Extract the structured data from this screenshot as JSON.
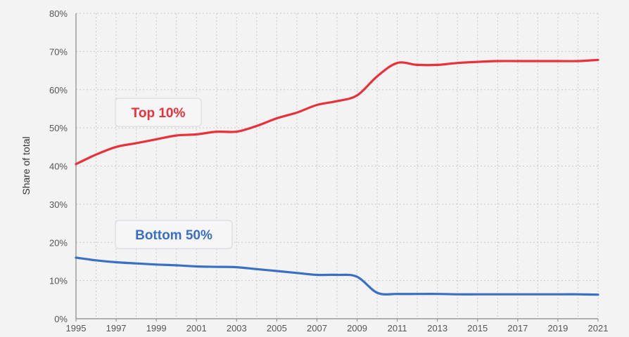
{
  "chart_data": {
    "type": "line",
    "title": "",
    "xlabel": "",
    "ylabel": "Share of total",
    "xlim": [
      1995,
      2021
    ],
    "ylim": [
      0,
      80
    ],
    "grid": true,
    "x_ticks": [
      "1995",
      "1997",
      "1999",
      "2001",
      "2003",
      "2005",
      "2007",
      "2009",
      "2011",
      "2013",
      "2015",
      "2017",
      "2019",
      "2021"
    ],
    "y_ticks": [
      "0%",
      "10%",
      "20%",
      "30%",
      "40%",
      "50%",
      "60%",
      "70%",
      "80%"
    ],
    "series": [
      {
        "name": "Top 10%",
        "color": "#e8313a",
        "x": [
          1995,
          1996,
          1997,
          1998,
          1999,
          2000,
          2001,
          2002,
          2003,
          2004,
          2005,
          2006,
          2007,
          2008,
          2009,
          2010,
          2011,
          2012,
          2013,
          2014,
          2015,
          2016,
          2017,
          2018,
          2019,
          2020,
          2021
        ],
        "y": [
          40.5,
          43,
          45,
          46,
          47,
          48,
          48.3,
          49,
          49,
          50.5,
          52.5,
          54,
          56,
          57,
          58.5,
          63.5,
          67,
          66.5,
          66.5,
          67,
          67.3,
          67.5,
          67.5,
          67.5,
          67.5,
          67.5,
          67.8
        ]
      },
      {
        "name": "Bottom 50%",
        "color": "#3a6fc4",
        "x": [
          1995,
          1996,
          1997,
          1998,
          1999,
          2000,
          2001,
          2002,
          2003,
          2004,
          2005,
          2006,
          2007,
          2008,
          2009,
          2010,
          2011,
          2012,
          2013,
          2014,
          2015,
          2016,
          2017,
          2018,
          2019,
          2020,
          2021
        ],
        "y": [
          16,
          15.3,
          14.8,
          14.5,
          14.2,
          14,
          13.7,
          13.6,
          13.5,
          13,
          12.5,
          12,
          11.5,
          11.5,
          11,
          6.8,
          6.5,
          6.5,
          6.5,
          6.4,
          6.4,
          6.4,
          6.4,
          6.4,
          6.4,
          6.4,
          6.3
        ]
      }
    ]
  }
}
